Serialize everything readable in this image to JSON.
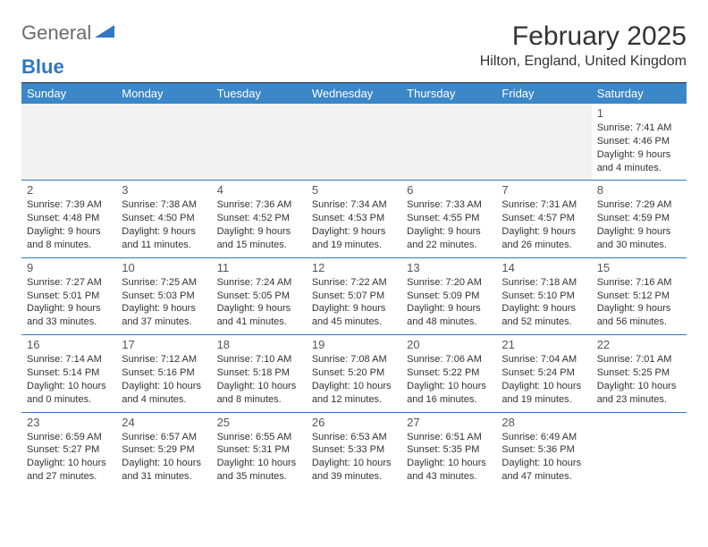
{
  "brand": {
    "general": "General",
    "blue": "Blue"
  },
  "title": {
    "month": "February 2025",
    "location": "Hilton, England, United Kingdom"
  },
  "colors": {
    "header_bg": "#3b87c8",
    "accent": "#2f78c3",
    "grey_row": "#f2f2f2"
  },
  "dow": [
    "Sunday",
    "Monday",
    "Tuesday",
    "Wednesday",
    "Thursday",
    "Friday",
    "Saturday"
  ],
  "weeks": [
    [
      null,
      null,
      null,
      null,
      null,
      null,
      {
        "n": "1",
        "sunrise": "7:41 AM",
        "sunset": "4:46 PM",
        "daylight": "9 hours and 4 minutes."
      }
    ],
    [
      {
        "n": "2",
        "sunrise": "7:39 AM",
        "sunset": "4:48 PM",
        "daylight": "9 hours and 8 minutes."
      },
      {
        "n": "3",
        "sunrise": "7:38 AM",
        "sunset": "4:50 PM",
        "daylight": "9 hours and 11 minutes."
      },
      {
        "n": "4",
        "sunrise": "7:36 AM",
        "sunset": "4:52 PM",
        "daylight": "9 hours and 15 minutes."
      },
      {
        "n": "5",
        "sunrise": "7:34 AM",
        "sunset": "4:53 PM",
        "daylight": "9 hours and 19 minutes."
      },
      {
        "n": "6",
        "sunrise": "7:33 AM",
        "sunset": "4:55 PM",
        "daylight": "9 hours and 22 minutes."
      },
      {
        "n": "7",
        "sunrise": "7:31 AM",
        "sunset": "4:57 PM",
        "daylight": "9 hours and 26 minutes."
      },
      {
        "n": "8",
        "sunrise": "7:29 AM",
        "sunset": "4:59 PM",
        "daylight": "9 hours and 30 minutes."
      }
    ],
    [
      {
        "n": "9",
        "sunrise": "7:27 AM",
        "sunset": "5:01 PM",
        "daylight": "9 hours and 33 minutes."
      },
      {
        "n": "10",
        "sunrise": "7:25 AM",
        "sunset": "5:03 PM",
        "daylight": "9 hours and 37 minutes."
      },
      {
        "n": "11",
        "sunrise": "7:24 AM",
        "sunset": "5:05 PM",
        "daylight": "9 hours and 41 minutes."
      },
      {
        "n": "12",
        "sunrise": "7:22 AM",
        "sunset": "5:07 PM",
        "daylight": "9 hours and 45 minutes."
      },
      {
        "n": "13",
        "sunrise": "7:20 AM",
        "sunset": "5:09 PM",
        "daylight": "9 hours and 48 minutes."
      },
      {
        "n": "14",
        "sunrise": "7:18 AM",
        "sunset": "5:10 PM",
        "daylight": "9 hours and 52 minutes."
      },
      {
        "n": "15",
        "sunrise": "7:16 AM",
        "sunset": "5:12 PM",
        "daylight": "9 hours and 56 minutes."
      }
    ],
    [
      {
        "n": "16",
        "sunrise": "7:14 AM",
        "sunset": "5:14 PM",
        "daylight": "10 hours and 0 minutes."
      },
      {
        "n": "17",
        "sunrise": "7:12 AM",
        "sunset": "5:16 PM",
        "daylight": "10 hours and 4 minutes."
      },
      {
        "n": "18",
        "sunrise": "7:10 AM",
        "sunset": "5:18 PM",
        "daylight": "10 hours and 8 minutes."
      },
      {
        "n": "19",
        "sunrise": "7:08 AM",
        "sunset": "5:20 PM",
        "daylight": "10 hours and 12 minutes."
      },
      {
        "n": "20",
        "sunrise": "7:06 AM",
        "sunset": "5:22 PM",
        "daylight": "10 hours and 16 minutes."
      },
      {
        "n": "21",
        "sunrise": "7:04 AM",
        "sunset": "5:24 PM",
        "daylight": "10 hours and 19 minutes."
      },
      {
        "n": "22",
        "sunrise": "7:01 AM",
        "sunset": "5:25 PM",
        "daylight": "10 hours and 23 minutes."
      }
    ],
    [
      {
        "n": "23",
        "sunrise": "6:59 AM",
        "sunset": "5:27 PM",
        "daylight": "10 hours and 27 minutes."
      },
      {
        "n": "24",
        "sunrise": "6:57 AM",
        "sunset": "5:29 PM",
        "daylight": "10 hours and 31 minutes."
      },
      {
        "n": "25",
        "sunrise": "6:55 AM",
        "sunset": "5:31 PM",
        "daylight": "10 hours and 35 minutes."
      },
      {
        "n": "26",
        "sunrise": "6:53 AM",
        "sunset": "5:33 PM",
        "daylight": "10 hours and 39 minutes."
      },
      {
        "n": "27",
        "sunrise": "6:51 AM",
        "sunset": "5:35 PM",
        "daylight": "10 hours and 43 minutes."
      },
      {
        "n": "28",
        "sunrise": "6:49 AM",
        "sunset": "5:36 PM",
        "daylight": "10 hours and 47 minutes."
      },
      null
    ]
  ],
  "labels": {
    "sunrise": "Sunrise:",
    "sunset": "Sunset:",
    "daylight": "Daylight:"
  }
}
